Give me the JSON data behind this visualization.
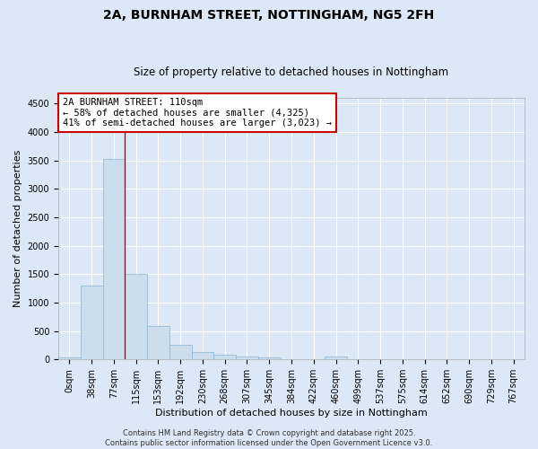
{
  "title_line1": "2A, BURNHAM STREET, NOTTINGHAM, NG5 2FH",
  "title_line2": "Size of property relative to detached houses in Nottingham",
  "xlabel": "Distribution of detached houses by size in Nottingham",
  "ylabel": "Number of detached properties",
  "bar_color": "#ccdded",
  "bar_edge_color": "#89b4d4",
  "background_color": "#dce8f5",
  "grid_color": "#ffffff",
  "bin_labels": [
    "0sqm",
    "38sqm",
    "77sqm",
    "115sqm",
    "153sqm",
    "192sqm",
    "230sqm",
    "268sqm",
    "307sqm",
    "345sqm",
    "384sqm",
    "422sqm",
    "460sqm",
    "499sqm",
    "537sqm",
    "575sqm",
    "614sqm",
    "652sqm",
    "690sqm",
    "729sqm",
    "767sqm"
  ],
  "bar_heights": [
    30,
    1300,
    3530,
    1500,
    590,
    250,
    130,
    90,
    50,
    30,
    5,
    5,
    50,
    5,
    5,
    5,
    5,
    5,
    5,
    5,
    5
  ],
  "ylim": [
    0,
    4600
  ],
  "yticks": [
    0,
    500,
    1000,
    1500,
    2000,
    2500,
    3000,
    3500,
    4000,
    4500
  ],
  "property_line_x": 3.0,
  "annotation_text_line1": "2A BURNHAM STREET: 110sqm",
  "annotation_text_line2": "← 58% of detached houses are smaller (4,325)",
  "annotation_text_line3": "41% of semi-detached houses are larger (3,023) →",
  "annotation_box_color": "#ffffff",
  "annotation_box_edge": "#cc0000",
  "vline_color": "#cc0000",
  "footer_line1": "Contains HM Land Registry data © Crown copyright and database right 2025.",
  "footer_line2": "Contains public sector information licensed under the Open Government Licence v3.0.",
  "title_fontsize": 10,
  "subtitle_fontsize": 8.5,
  "label_fontsize": 8,
  "tick_fontsize": 7,
  "footer_fontsize": 6,
  "ann_fontsize": 7.5
}
